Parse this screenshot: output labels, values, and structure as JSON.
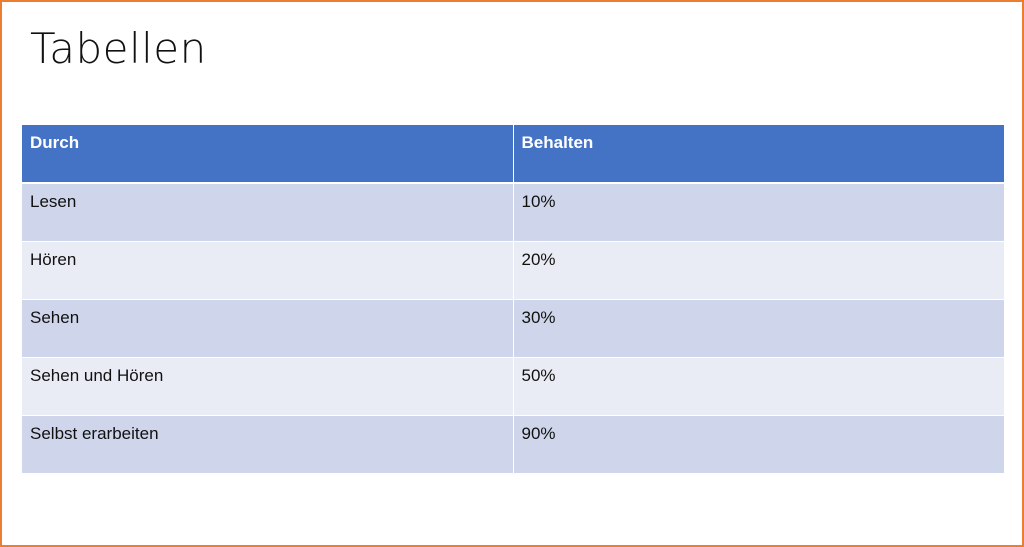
{
  "slide": {
    "title": "Tabellen"
  },
  "table": {
    "headers": [
      "Durch",
      "Behalten"
    ],
    "rows": [
      [
        "Lesen",
        "10%"
      ],
      [
        "Hören",
        "20%"
      ],
      [
        "Sehen",
        "30%"
      ],
      [
        "Sehen und Hören",
        "50%"
      ],
      [
        "Selbst erarbeiten",
        "90%"
      ]
    ]
  },
  "colors": {
    "header_fill": "#4472c4",
    "band_dark": "#cfd5ea",
    "band_light": "#e9ebf5",
    "frame": "#ed7d31"
  }
}
